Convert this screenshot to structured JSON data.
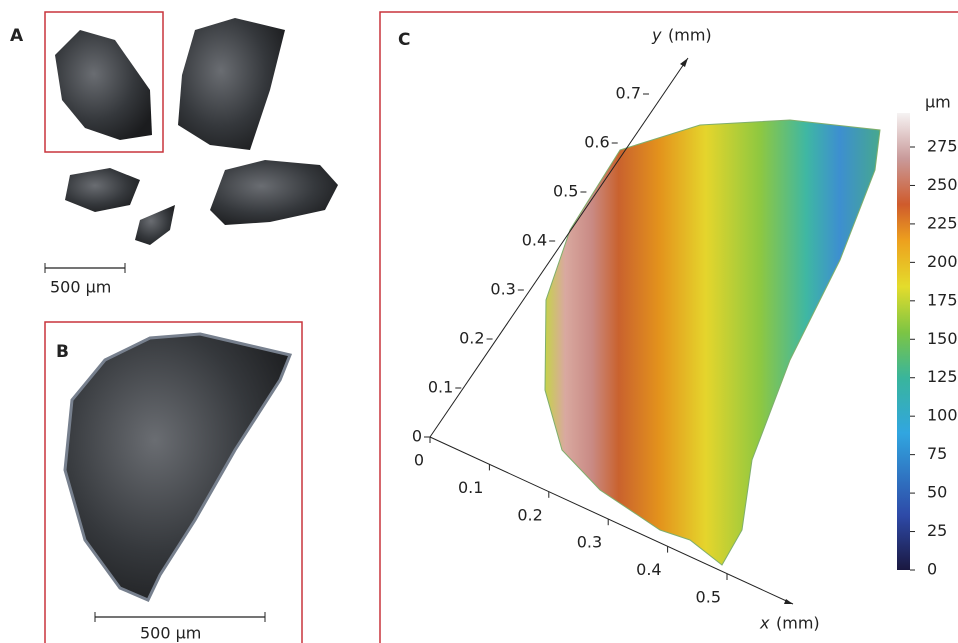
{
  "panels": {
    "a": {
      "label": "A",
      "scale_bar": "500 µm"
    },
    "b": {
      "label": "B",
      "scale_bar": "500 µm"
    },
    "c": {
      "label": "C",
      "y_axis": {
        "var": "y",
        "unit": "(mm)",
        "ticks": [
          0,
          0.1,
          0.2,
          0.3,
          0.4,
          0.5,
          0.6,
          0.7
        ]
      },
      "x_axis": {
        "var": "x",
        "unit": "(mm)",
        "ticks": [
          0,
          0.1,
          0.2,
          0.3,
          0.4,
          0.5
        ]
      },
      "colorbar": {
        "unit": "µm",
        "ticks": [
          0,
          25,
          50,
          75,
          100,
          125,
          150,
          175,
          200,
          225,
          250,
          275
        ]
      }
    }
  }
}
